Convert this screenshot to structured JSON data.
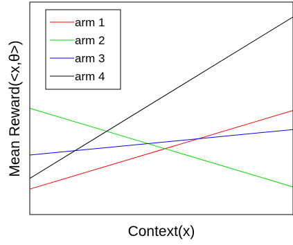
{
  "chart_data": {
    "type": "line",
    "xlabel": "Context(x)",
    "ylabel": "Mean Reward(<x,θ>)",
    "xlim": [
      0,
      1
    ],
    "ylim": [
      0,
      1
    ],
    "x_ticks_shown": false,
    "y_ticks_shown": false,
    "grid": false,
    "legend_position": "top-left",
    "series": [
      {
        "name": "arm 1",
        "color": "#ff0000",
        "x": [
          0,
          1
        ],
        "y": [
          0.12,
          0.49
        ]
      },
      {
        "name": "arm 2",
        "color": "#00dd00",
        "x": [
          0,
          1
        ],
        "y": [
          0.5,
          0.13
        ]
      },
      {
        "name": "arm 3",
        "color": "#0000ff",
        "x": [
          0,
          1
        ],
        "y": [
          0.28,
          0.4
        ]
      },
      {
        "name": "arm 4",
        "color": "#000000",
        "x": [
          0,
          1
        ],
        "y": [
          0.17,
          0.93
        ]
      }
    ]
  }
}
